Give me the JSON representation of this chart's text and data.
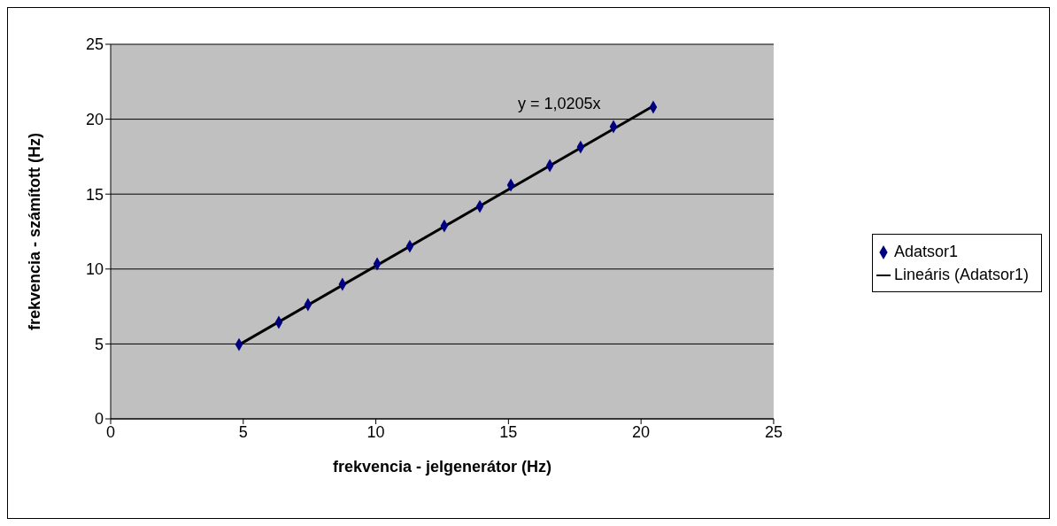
{
  "chart_data": {
    "type": "scatter",
    "xlabel": "frekvencia - jelgenerátor (Hz)",
    "ylabel": "frekvencia - számított (Hz)",
    "xlim": [
      0,
      25
    ],
    "ylim": [
      0,
      25
    ],
    "xticks": [
      0,
      5,
      10,
      15,
      20,
      25
    ],
    "yticks": [
      0,
      5,
      10,
      15,
      20,
      25
    ],
    "grid": "y",
    "legend": "right",
    "series": [
      {
        "name": "Adatsor1",
        "marker": "diamond",
        "color": "#000080",
        "x": [
          4.84,
          6.34,
          7.44,
          8.74,
          10.05,
          11.28,
          12.58,
          13.92,
          15.09,
          16.56,
          17.72,
          18.96,
          20.46
        ],
        "values": [
          4.96,
          6.44,
          7.62,
          8.98,
          10.34,
          11.52,
          12.88,
          14.18,
          15.6,
          16.9,
          18.14,
          19.5,
          20.8
        ]
      },
      {
        "name": "Lineáris (Adatsor1)",
        "type": "line",
        "color": "#000000",
        "marker": "none",
        "line_style": "solid",
        "x": [
          4.84,
          20.46
        ],
        "values": [
          4.94,
          20.88
        ]
      }
    ],
    "annotations": [
      "y = 1,0205x"
    ]
  }
}
